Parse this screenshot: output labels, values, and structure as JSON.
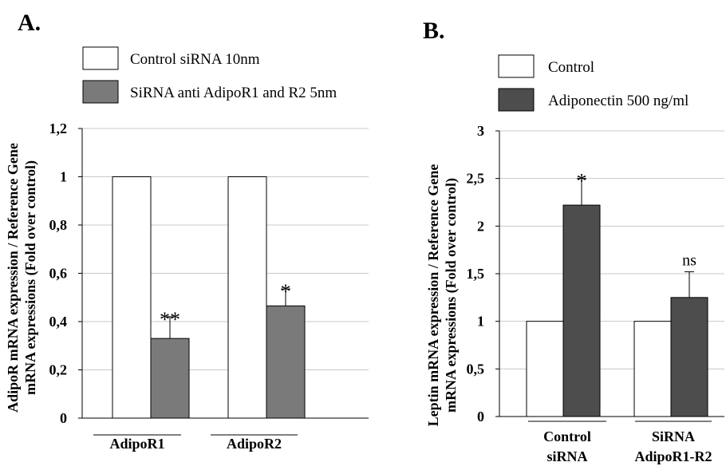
{
  "chart_data": [
    {
      "panel": "A.",
      "type": "bar",
      "categories": [
        "AdipoR1",
        "AdipoR2"
      ],
      "ylabel": [
        "AdipoR mRNA expression / Reference Gene",
        "mRNA expressions (Fold over control)"
      ],
      "ylim": [
        0,
        1.2
      ],
      "yticks": [
        "0",
        "0,2",
        "0,4",
        "0,6",
        "0,8",
        "1",
        "1,2"
      ],
      "ytick_values": [
        0,
        0.2,
        0.4,
        0.6,
        0.8,
        1.0,
        1.2
      ],
      "grid": true,
      "legend_position": "top",
      "series": [
        {
          "name": "Control siRNA 10nm",
          "color": "#ffffff",
          "values": [
            1.0,
            1.0
          ],
          "errors": [
            0,
            0
          ]
        },
        {
          "name": "SiRNA anti AdipoR1 and R2 5nm",
          "color": "#7a7a7a",
          "values": [
            0.33,
            0.465
          ],
          "errors": [
            0.09,
            0.07
          ]
        }
      ],
      "annotations": [
        {
          "category": 0,
          "series": 1,
          "text": "**"
        },
        {
          "category": 1,
          "series": 1,
          "text": "*"
        }
      ]
    },
    {
      "panel": "B.",
      "type": "bar",
      "categories": [
        [
          "Control",
          "siRNA"
        ],
        [
          "SiRNA",
          "AdipoR1-R2"
        ]
      ],
      "ylabel": [
        "Leptin mRNA expression / Reference Gene",
        "mRNA expressions (Fold over control)"
      ],
      "ylim": [
        0,
        3
      ],
      "yticks": [
        "0",
        "0,5",
        "1",
        "1,5",
        "2",
        "2,5",
        "3"
      ],
      "ytick_values": [
        0,
        0.5,
        1,
        1.5,
        2,
        2.5,
        3
      ],
      "grid": true,
      "legend_position": "top",
      "series": [
        {
          "name": "Control",
          "color": "#ffffff",
          "values": [
            1.0,
            1.0
          ],
          "errors": [
            0,
            0
          ]
        },
        {
          "name": "Adiponectin 500 ng/ml",
          "color": "#4d4d4d",
          "values": [
            2.22,
            1.25
          ],
          "errors": [
            0.28,
            0.27
          ]
        }
      ],
      "annotations": [
        {
          "category": 0,
          "series": 1,
          "text": "*"
        },
        {
          "category": 1,
          "series": 1,
          "text": "ns"
        }
      ]
    }
  ]
}
